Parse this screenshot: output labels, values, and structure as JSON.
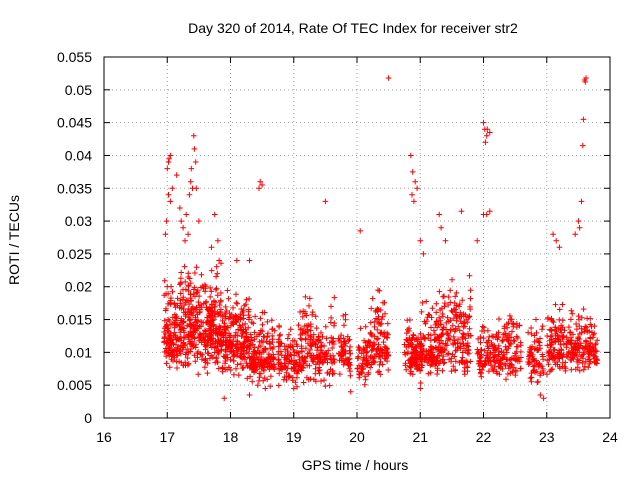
{
  "chart_data": {
    "type": "scatter",
    "title": "Day 320 of 2014, Rate Of TEC Index for receiver str2",
    "xlabel": "GPS time / hours",
    "ylabel": "ROTI / TECUs",
    "xlim": [
      16,
      24
    ],
    "ylim": [
      0,
      0.055
    ],
    "xticks": [
      "16",
      "17",
      "18",
      "19",
      "20",
      "21",
      "22",
      "23",
      "24"
    ],
    "yticks": [
      "0",
      "0.005",
      "0.01",
      "0.015",
      "0.02",
      "0.025",
      "0.03",
      "0.035",
      "0.04",
      "0.045",
      "0.05",
      "0.055"
    ],
    "grid": true,
    "marker": "+",
    "color": "#ff0000",
    "series": [
      {
        "name": "ROTI",
        "clusters": [
          {
            "x": [
              16.95,
              17.3
            ],
            "y": [
              0.005,
              0.025
            ],
            "n": 180
          },
          {
            "x": [
              17.3,
              17.85
            ],
            "y": [
              0.006,
              0.026
            ],
            "n": 320
          },
          {
            "x": [
              17.85,
              18.3
            ],
            "y": [
              0.005,
              0.022
            ],
            "n": 220
          },
          {
            "x": [
              18.3,
              18.7
            ],
            "y": [
              0.004,
              0.018
            ],
            "n": 170
          },
          {
            "x": [
              18.75,
              19.1
            ],
            "y": [
              0.004,
              0.016
            ],
            "n": 110
          },
          {
            "x": [
              19.1,
              19.65
            ],
            "y": [
              0.004,
              0.02
            ],
            "n": 180
          },
          {
            "x": [
              19.7,
              19.9
            ],
            "y": [
              0.005,
              0.018
            ],
            "n": 60
          },
          {
            "x": [
              20.0,
              20.2
            ],
            "y": [
              0.005,
              0.016
            ],
            "n": 60
          },
          {
            "x": [
              20.2,
              20.5
            ],
            "y": [
              0.005,
              0.022
            ],
            "n": 110
          },
          {
            "x": [
              20.75,
              21.0
            ],
            "y": [
              0.005,
              0.016
            ],
            "n": 100
          },
          {
            "x": [
              21.0,
              21.35
            ],
            "y": [
              0.005,
              0.02
            ],
            "n": 150
          },
          {
            "x": [
              21.35,
              21.8
            ],
            "y": [
              0.005,
              0.024
            ],
            "n": 160
          },
          {
            "x": [
              21.9,
              22.3
            ],
            "y": [
              0.005,
              0.016
            ],
            "n": 120
          },
          {
            "x": [
              22.3,
              22.6
            ],
            "y": [
              0.005,
              0.019
            ],
            "n": 90
          },
          {
            "x": [
              22.7,
              22.95
            ],
            "y": [
              0.004,
              0.017
            ],
            "n": 70
          },
          {
            "x": [
              23.0,
              23.4
            ],
            "y": [
              0.005,
              0.02
            ],
            "n": 140
          },
          {
            "x": [
              23.4,
              23.8
            ],
            "y": [
              0.006,
              0.018
            ],
            "n": 130
          }
        ],
        "points": [
          [
            16.97,
            0.028
          ],
          [
            16.99,
            0.03
          ],
          [
            17.0,
            0.038
          ],
          [
            17.02,
            0.039
          ],
          [
            17.03,
            0.0395
          ],
          [
            17.05,
            0.04
          ],
          [
            17.02,
            0.034
          ],
          [
            17.05,
            0.033
          ],
          [
            17.08,
            0.035
          ],
          [
            17.15,
            0.037
          ],
          [
            17.2,
            0.032
          ],
          [
            17.22,
            0.03
          ],
          [
            17.25,
            0.029
          ],
          [
            17.28,
            0.027
          ],
          [
            17.3,
            0.031
          ],
          [
            17.33,
            0.028
          ],
          [
            17.35,
            0.034
          ],
          [
            17.37,
            0.036
          ],
          [
            17.4,
            0.035
          ],
          [
            17.42,
            0.043
          ],
          [
            17.43,
            0.041
          ],
          [
            17.45,
            0.039
          ],
          [
            17.38,
            0.038
          ],
          [
            17.46,
            0.035
          ],
          [
            17.5,
            0.03
          ],
          [
            17.7,
            0.026
          ],
          [
            17.75,
            0.031
          ],
          [
            17.8,
            0.027
          ],
          [
            17.82,
            0.024
          ],
          [
            18.1,
            0.024
          ],
          [
            18.3,
            0.024
          ],
          [
            18.45,
            0.035
          ],
          [
            18.47,
            0.036
          ],
          [
            18.5,
            0.0355
          ],
          [
            18.55,
            0.0045
          ],
          [
            19.5,
            0.033
          ],
          [
            20.05,
            0.0285
          ],
          [
            20.5,
            0.0518
          ],
          [
            20.85,
            0.04
          ],
          [
            20.88,
            0.0375
          ],
          [
            20.87,
            0.034
          ],
          [
            20.9,
            0.033
          ],
          [
            20.92,
            0.036
          ],
          [
            20.95,
            0.035
          ],
          [
            21.0,
            0.027
          ],
          [
            21.05,
            0.025
          ],
          [
            21.3,
            0.031
          ],
          [
            21.33,
            0.029
          ],
          [
            21.4,
            0.027
          ],
          [
            21.65,
            0.0315
          ],
          [
            21.9,
            0.027
          ],
          [
            22.0,
            0.045
          ],
          [
            22.02,
            0.044
          ],
          [
            22.05,
            0.043
          ],
          [
            22.03,
            0.042
          ],
          [
            22.06,
            0.044
          ],
          [
            22.1,
            0.0435
          ],
          [
            22.0,
            0.031
          ],
          [
            22.05,
            0.031
          ],
          [
            22.1,
            0.0315
          ],
          [
            23.1,
            0.028
          ],
          [
            23.15,
            0.027
          ],
          [
            23.45,
            0.028
          ],
          [
            23.5,
            0.03
          ],
          [
            23.52,
            0.029
          ],
          [
            23.55,
            0.033
          ],
          [
            23.57,
            0.0415
          ],
          [
            23.58,
            0.0455
          ],
          [
            23.6,
            0.0515
          ],
          [
            23.62,
            0.0518
          ],
          [
            23.61,
            0.0512
          ],
          [
            23.2,
            0.026
          ],
          [
            17.9,
            0.003
          ],
          [
            18.3,
            0.0035
          ],
          [
            19.9,
            0.004
          ],
          [
            22.9,
            0.0035
          ],
          [
            22.95,
            0.003
          ],
          [
            21.0,
            0.0045
          ],
          [
            19.0,
            0.0045
          ]
        ]
      }
    ]
  }
}
